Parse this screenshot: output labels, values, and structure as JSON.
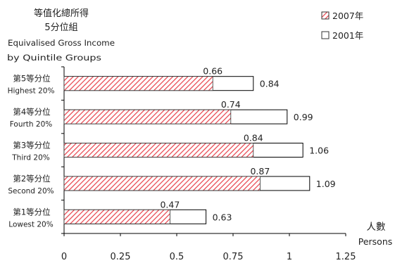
{
  "chart_data": {
    "type": "bar",
    "orientation": "horizontal",
    "title_zh": [
      "等值化總所得",
      "5分位組"
    ],
    "title_en": [
      "Equivalised Gross Income",
      "by Quintile Groups"
    ],
    "xlabel_zh": "人數",
    "xlabel_en": "Persons",
    "xlim": [
      0,
      1.25
    ],
    "xticks": [
      "0",
      "0.25",
      "0.5",
      "0.75",
      "1",
      "1.25"
    ],
    "xtick_values": [
      0,
      0.25,
      0.5,
      0.75,
      1,
      1.25
    ],
    "legend_position": "top-right",
    "categories": [
      {
        "zh": "第5等分位",
        "en": "Highest 20%"
      },
      {
        "zh": "第4等分位",
        "en": "Fourth 20%"
      },
      {
        "zh": "第3等分位",
        "en": "Third 20%"
      },
      {
        "zh": "第2等分位",
        "en": "Second 20%"
      },
      {
        "zh": "第1等分位",
        "en": "Lowest 20%"
      }
    ],
    "series": [
      {
        "name": "2007年",
        "values": [
          0.66,
          0.74,
          0.84,
          0.87,
          0.47
        ],
        "labels": [
          "0.66",
          "0.74",
          "0.84",
          "0.87",
          "0.47"
        ],
        "color": "#e8404a",
        "pattern": "diagonal-hatch"
      },
      {
        "name": "2001年",
        "values": [
          0.84,
          0.99,
          1.06,
          1.09,
          0.63
        ],
        "labels": [
          "0.84",
          "0.99",
          "1.06",
          "1.09",
          "0.63"
        ],
        "color": "#ffffff",
        "pattern": "solid"
      }
    ]
  }
}
